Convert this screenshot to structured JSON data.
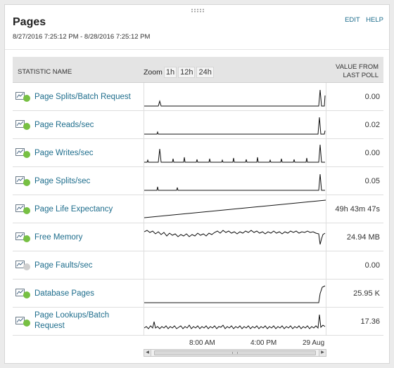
{
  "header": {
    "title": "Pages",
    "date_range": "8/27/2016 7:25:12 PM - 8/28/2016 7:25:12 PM",
    "edit_label": "EDIT",
    "help_label": "HELP"
  },
  "table": {
    "col_statistic": "STATISTIC NAME",
    "zoom_label": "Zoom",
    "zoom_options": [
      "1h",
      "12h",
      "24h"
    ],
    "col_value_line1": "VALUE FROM",
    "col_value_line2": "LAST POLL"
  },
  "colors": {
    "status_up": "#77c043",
    "status_unknown": "#cfcfcf",
    "link": "#1e6d8c"
  },
  "rows": [
    {
      "name": "Page Splits/Batch Request",
      "value": "0.00",
      "status": "up",
      "icon": "chart-icon"
    },
    {
      "name": "Page Reads/sec",
      "value": "0.02",
      "status": "up",
      "icon": "chart-icon"
    },
    {
      "name": "Page Writes/sec",
      "value": "0.00",
      "status": "up",
      "icon": "chart-icon"
    },
    {
      "name": "Page Splits/sec",
      "value": "0.05",
      "status": "up",
      "icon": "chart-icon"
    },
    {
      "name": "Page Life Expectancy",
      "value": "49h 43m 47s",
      "status": "up",
      "icon": "chart-icon"
    },
    {
      "name": "Free Memory",
      "value": "24.94 MB",
      "status": "up",
      "icon": "chart-icon"
    },
    {
      "name": "Page Faults/sec",
      "value": "0.00",
      "status": "unknown",
      "icon": "chart-icon"
    },
    {
      "name": "Database Pages",
      "value": "25.95 K",
      "status": "up",
      "icon": "chart-icon"
    },
    {
      "name_line1": "Page Lookups/Batch",
      "name_line2": "Request",
      "value": "17.36",
      "status": "up",
      "icon": "chart-icon"
    }
  ],
  "axis": {
    "labels": [
      "8:00 AM",
      "4:00 PM",
      "29 Aug"
    ]
  },
  "scrollbar": {
    "left_arrow": "◀",
    "right_arrow": "▶"
  }
}
